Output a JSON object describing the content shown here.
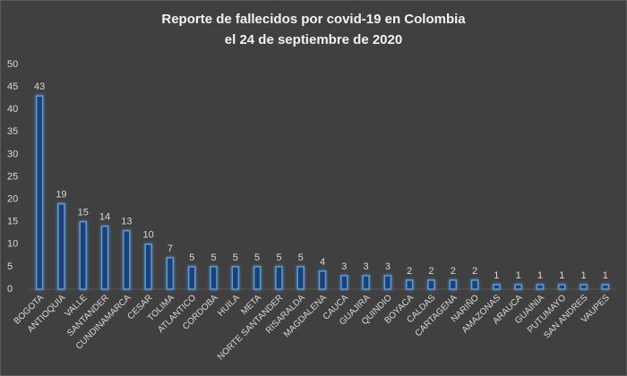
{
  "chart_data": {
    "type": "bar",
    "title": [
      "Reporte de fallecidos por covid-19 en Colombia",
      "el 24 de septiembre de 2020"
    ],
    "categories": [
      "BOGOTA",
      "ANTIOQUIA",
      "VALLE",
      "SANTANDER",
      "CUNDINAMARCA",
      "CESAR",
      "TOLIMA",
      "ATLANTICO",
      "CORDOBA",
      "HUILA",
      "META",
      "NORTE SANTANDER",
      "RISARALDA",
      "MAGDALENA",
      "CAUCA",
      "GUAJIRA",
      "QUINDIO",
      "BOYACA",
      "CALDAS",
      "CARTAGENA",
      "NARIÑO",
      "AMAZONAS",
      "ARAUCA",
      "GUAINIA",
      "PUTUMAYO",
      "SAN ANDRES",
      "VAUPES"
    ],
    "values": [
      43,
      19,
      15,
      14,
      13,
      10,
      7,
      5,
      5,
      5,
      5,
      5,
      5,
      4,
      3,
      3,
      3,
      2,
      2,
      2,
      2,
      1,
      1,
      1,
      1,
      1,
      1
    ],
    "color": "#1f3f78",
    "ylim": [
      0,
      50
    ],
    "yticks": [
      0,
      5,
      10,
      15,
      20,
      25,
      30,
      35,
      40,
      45,
      50
    ],
    "grid": false
  }
}
